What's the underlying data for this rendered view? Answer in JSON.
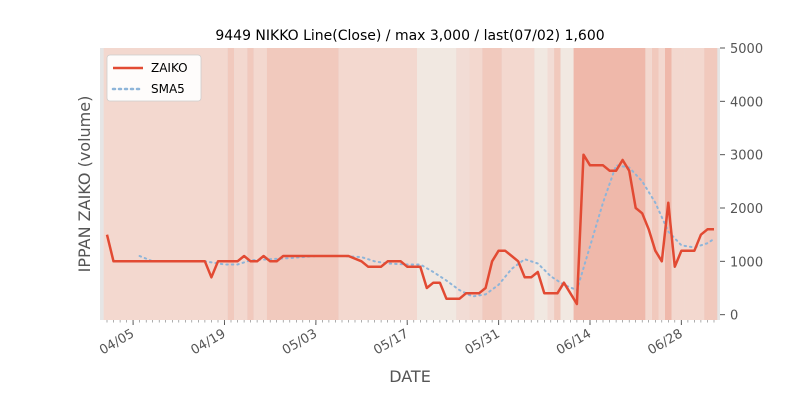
{
  "chart_data": {
    "type": "line",
    "title": "9449 NIKKO Line(Close) / max 3,000 / last(07/02) 1,600",
    "xlabel": "DATE",
    "ylabel": "IPPAN ZAIKO (volume)",
    "ylim": [
      -100,
      5000
    ],
    "yticks": [
      0,
      1000,
      2000,
      3000,
      4000,
      5000
    ],
    "yaxis_side": "right",
    "x_start_date": "2021-04-01",
    "x_end_date": "2021-07-03",
    "xticks": [
      {
        "label": "04/05",
        "date": "2021-04-05"
      },
      {
        "label": "04/19",
        "date": "2021-04-19"
      },
      {
        "label": "05/03",
        "date": "2021-05-03"
      },
      {
        "label": "05/17",
        "date": "2021-05-17"
      },
      {
        "label": "05/31",
        "date": "2021-05-31"
      },
      {
        "label": "06/14",
        "date": "2021-06-14"
      },
      {
        "label": "06/28",
        "date": "2021-06-28"
      }
    ],
    "legend_position": "top-left",
    "grid": false,
    "colors": {
      "background": "#e5e5e5",
      "zaiko": "#e24a33",
      "sma5": "#8eb5d9"
    },
    "series": [
      {
        "name": "ZAIKO",
        "style": "solid",
        "points": [
          [
            "2021-04-01",
            1500
          ],
          [
            "2021-04-02",
            1000
          ],
          [
            "2021-04-05",
            1000
          ],
          [
            "2021-04-06",
            1000
          ],
          [
            "2021-04-07",
            1000
          ],
          [
            "2021-04-08",
            1000
          ],
          [
            "2021-04-09",
            1000
          ],
          [
            "2021-04-12",
            1000
          ],
          [
            "2021-04-13",
            1000
          ],
          [
            "2021-04-14",
            1000
          ],
          [
            "2021-04-15",
            1000
          ],
          [
            "2021-04-16",
            1000
          ],
          [
            "2021-04-17",
            700
          ],
          [
            "2021-04-18",
            1000
          ],
          [
            "2021-04-19",
            1000
          ],
          [
            "2021-04-20",
            1000
          ],
          [
            "2021-04-21",
            1000
          ],
          [
            "2021-04-22",
            1100
          ],
          [
            "2021-04-23",
            1000
          ],
          [
            "2021-04-24",
            1000
          ],
          [
            "2021-04-25",
            1100
          ],
          [
            "2021-04-26",
            1000
          ],
          [
            "2021-04-27",
            1000
          ],
          [
            "2021-04-28",
            1100
          ],
          [
            "2021-04-29",
            1100
          ],
          [
            "2021-04-30",
            1100
          ],
          [
            "2021-05-03",
            1100
          ],
          [
            "2021-05-06",
            1100
          ],
          [
            "2021-05-07",
            1100
          ],
          [
            "2021-05-08",
            1100
          ],
          [
            "2021-05-10",
            1000
          ],
          [
            "2021-05-11",
            900
          ],
          [
            "2021-05-12",
            900
          ],
          [
            "2021-05-13",
            900
          ],
          [
            "2021-05-14",
            1000
          ],
          [
            "2021-05-15",
            1000
          ],
          [
            "2021-05-16",
            1000
          ],
          [
            "2021-05-17",
            900
          ],
          [
            "2021-05-18",
            900
          ],
          [
            "2021-05-19",
            900
          ],
          [
            "2021-05-20",
            500
          ],
          [
            "2021-05-21",
            600
          ],
          [
            "2021-05-22",
            600
          ],
          [
            "2021-05-23",
            300
          ],
          [
            "2021-05-24",
            300
          ],
          [
            "2021-05-25",
            300
          ],
          [
            "2021-05-26",
            400
          ],
          [
            "2021-05-27",
            400
          ],
          [
            "2021-05-28",
            400
          ],
          [
            "2021-05-29",
            500
          ],
          [
            "2021-05-30",
            1000
          ],
          [
            "2021-05-31",
            1200
          ],
          [
            "2021-06-01",
            1200
          ],
          [
            "2021-06-02",
            1100
          ],
          [
            "2021-06-03",
            1000
          ],
          [
            "2021-06-04",
            700
          ],
          [
            "2021-06-05",
            700
          ],
          [
            "2021-06-06",
            800
          ],
          [
            "2021-06-07",
            400
          ],
          [
            "2021-06-08",
            400
          ],
          [
            "2021-06-09",
            400
          ],
          [
            "2021-06-10",
            600
          ],
          [
            "2021-06-11",
            400
          ],
          [
            "2021-06-12",
            200
          ],
          [
            "2021-06-13",
            3000
          ],
          [
            "2021-06-14",
            2800
          ],
          [
            "2021-06-15",
            2800
          ],
          [
            "2021-06-16",
            2800
          ],
          [
            "2021-06-17",
            2700
          ],
          [
            "2021-06-18",
            2700
          ],
          [
            "2021-06-19",
            2900
          ],
          [
            "2021-06-20",
            2700
          ],
          [
            "2021-06-21",
            2000
          ],
          [
            "2021-06-22",
            1900
          ],
          [
            "2021-06-23",
            1600
          ],
          [
            "2021-06-24",
            1200
          ],
          [
            "2021-06-25",
            1000
          ],
          [
            "2021-06-26",
            2100
          ],
          [
            "2021-06-27",
            900
          ],
          [
            "2021-06-28",
            1200
          ],
          [
            "2021-06-29",
            1200
          ],
          [
            "2021-06-30",
            1200
          ],
          [
            "2021-07-01",
            1500
          ],
          [
            "2021-07-02",
            1600
          ],
          [
            "2021-07-03",
            1600
          ]
        ]
      },
      {
        "name": "SMA5",
        "style": "dotted",
        "points": [
          [
            "2021-04-06",
            1100
          ],
          [
            "2021-04-08",
            1000
          ],
          [
            "2021-04-12",
            1000
          ],
          [
            "2021-04-16",
            1000
          ],
          [
            "2021-04-19",
            940
          ],
          [
            "2021-04-21",
            940
          ],
          [
            "2021-04-23",
            1020
          ],
          [
            "2021-04-26",
            1040
          ],
          [
            "2021-04-29",
            1060
          ],
          [
            "2021-05-03",
            1100
          ],
          [
            "2021-05-07",
            1100
          ],
          [
            "2021-05-10",
            1080
          ],
          [
            "2021-05-12",
            1000
          ],
          [
            "2021-05-14",
            960
          ],
          [
            "2021-05-17",
            940
          ],
          [
            "2021-05-19",
            940
          ],
          [
            "2021-05-21",
            800
          ],
          [
            "2021-05-23",
            640
          ],
          [
            "2021-05-25",
            460
          ],
          [
            "2021-05-27",
            340
          ],
          [
            "2021-05-29",
            380
          ],
          [
            "2021-05-31",
            560
          ],
          [
            "2021-06-02",
            860
          ],
          [
            "2021-06-04",
            1040
          ],
          [
            "2021-06-06",
            960
          ],
          [
            "2021-06-08",
            720
          ],
          [
            "2021-06-10",
            560
          ],
          [
            "2021-06-12",
            460
          ],
          [
            "2021-06-14",
            1280
          ],
          [
            "2021-06-16",
            2100
          ],
          [
            "2021-06-18",
            2800
          ],
          [
            "2021-06-20",
            2760
          ],
          [
            "2021-06-22",
            2500
          ],
          [
            "2021-06-24",
            2100
          ],
          [
            "2021-06-26",
            1560
          ],
          [
            "2021-06-28",
            1300
          ],
          [
            "2021-06-30",
            1260
          ],
          [
            "2021-07-02",
            1340
          ],
          [
            "2021-07-03",
            1420
          ]
        ]
      }
    ],
    "background_bands": [
      {
        "from": "2021-04-01",
        "to": "2021-04-20",
        "shade": 2
      },
      {
        "from": "2021-04-20",
        "to": "2021-04-21",
        "shade": 3
      },
      {
        "from": "2021-04-21",
        "to": "2021-04-23",
        "shade": 2
      },
      {
        "from": "2021-04-23",
        "to": "2021-04-24",
        "shade": 3
      },
      {
        "from": "2021-04-24",
        "to": "2021-04-26",
        "shade": 2
      },
      {
        "from": "2021-04-26",
        "to": "2021-05-07",
        "shade": 3
      },
      {
        "from": "2021-05-07",
        "to": "2021-05-19",
        "shade": 2
      },
      {
        "from": "2021-05-19",
        "to": "2021-05-25",
        "shade": 0
      },
      {
        "from": "2021-05-25",
        "to": "2021-05-27",
        "shade": 1
      },
      {
        "from": "2021-05-27",
        "to": "2021-05-29",
        "shade": 2
      },
      {
        "from": "2021-05-29",
        "to": "2021-06-01",
        "shade": 3
      },
      {
        "from": "2021-06-01",
        "to": "2021-06-06",
        "shade": 2
      },
      {
        "from": "2021-06-06",
        "to": "2021-06-08",
        "shade": 0
      },
      {
        "from": "2021-06-08",
        "to": "2021-06-09",
        "shade": 1
      },
      {
        "from": "2021-06-09",
        "to": "2021-06-10",
        "shade": 3
      },
      {
        "from": "2021-06-10",
        "to": "2021-06-12",
        "shade": 0
      },
      {
        "from": "2021-06-12",
        "to": "2021-06-23",
        "shade": 4
      },
      {
        "from": "2021-06-23",
        "to": "2021-06-24",
        "shade": 2
      },
      {
        "from": "2021-06-24",
        "to": "2021-06-25",
        "shade": 3
      },
      {
        "from": "2021-06-25",
        "to": "2021-06-26",
        "shade": 2
      },
      {
        "from": "2021-06-26",
        "to": "2021-06-27",
        "shade": 4
      },
      {
        "from": "2021-06-27",
        "to": "2021-06-29",
        "shade": 2
      },
      {
        "from": "2021-06-29",
        "to": "2021-07-02",
        "shade": 2
      },
      {
        "from": "2021-07-02",
        "to": "2021-07-04",
        "shade": 3
      }
    ],
    "band_colors": [
      "#f1e8e1",
      "#f2dcd5",
      "#f3d8cf",
      "#f1c9bd",
      "#efb8aa"
    ]
  }
}
